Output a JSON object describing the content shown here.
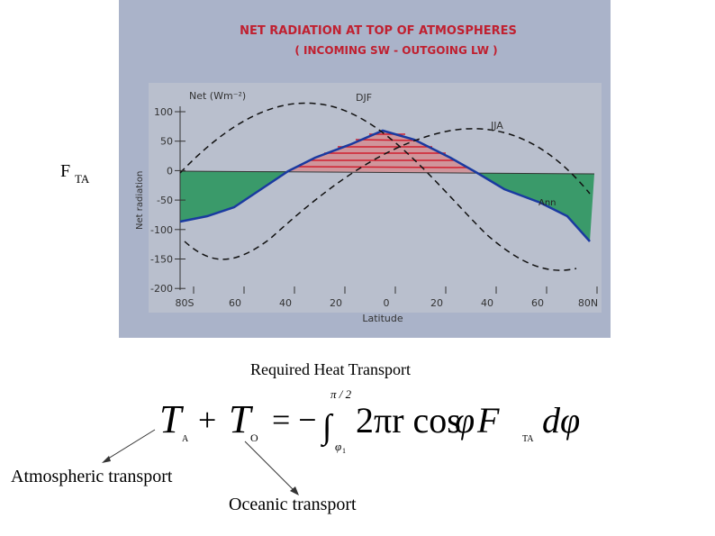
{
  "slide": {
    "side_label": "F",
    "side_label_sub": "TA",
    "caption": "Required Heat Transport",
    "atmospheric_label": "Atmospheric transport",
    "oceanic_label": "Oceanic transport"
  },
  "figure": {
    "title": "NET RADIATION  AT  TOP  OF  ATMOSPHERES",
    "subtitle": "( INCOMING SW  -  OUTGOING LW )",
    "unit_label": "Net (Wm⁻²)",
    "y_label": "Net radiation",
    "x_label": "Latitude",
    "yticks": [
      "100",
      "50",
      "0",
      "-50",
      "-100",
      "-150",
      "-200"
    ],
    "xticks": [
      "80S",
      "60",
      "40",
      "20",
      "0",
      "20",
      "40",
      "60",
      "80N"
    ],
    "curve_labels": [
      "DJF",
      "JJA",
      "Ann"
    ]
  },
  "equation": {
    "lhs_1": "T",
    "lhs_1_sub": "A",
    "plus": "+",
    "lhs_2": "T",
    "lhs_2_sub": "O",
    "equals": "= −",
    "integral": "∫",
    "upper": "π / 2",
    "lower": "φ",
    "lower_sub": "1",
    "integrand": "2πr cos",
    "phi": "φ",
    "flux": "F",
    "flux_sub": "TA",
    "differential": "dφ"
  }
}
